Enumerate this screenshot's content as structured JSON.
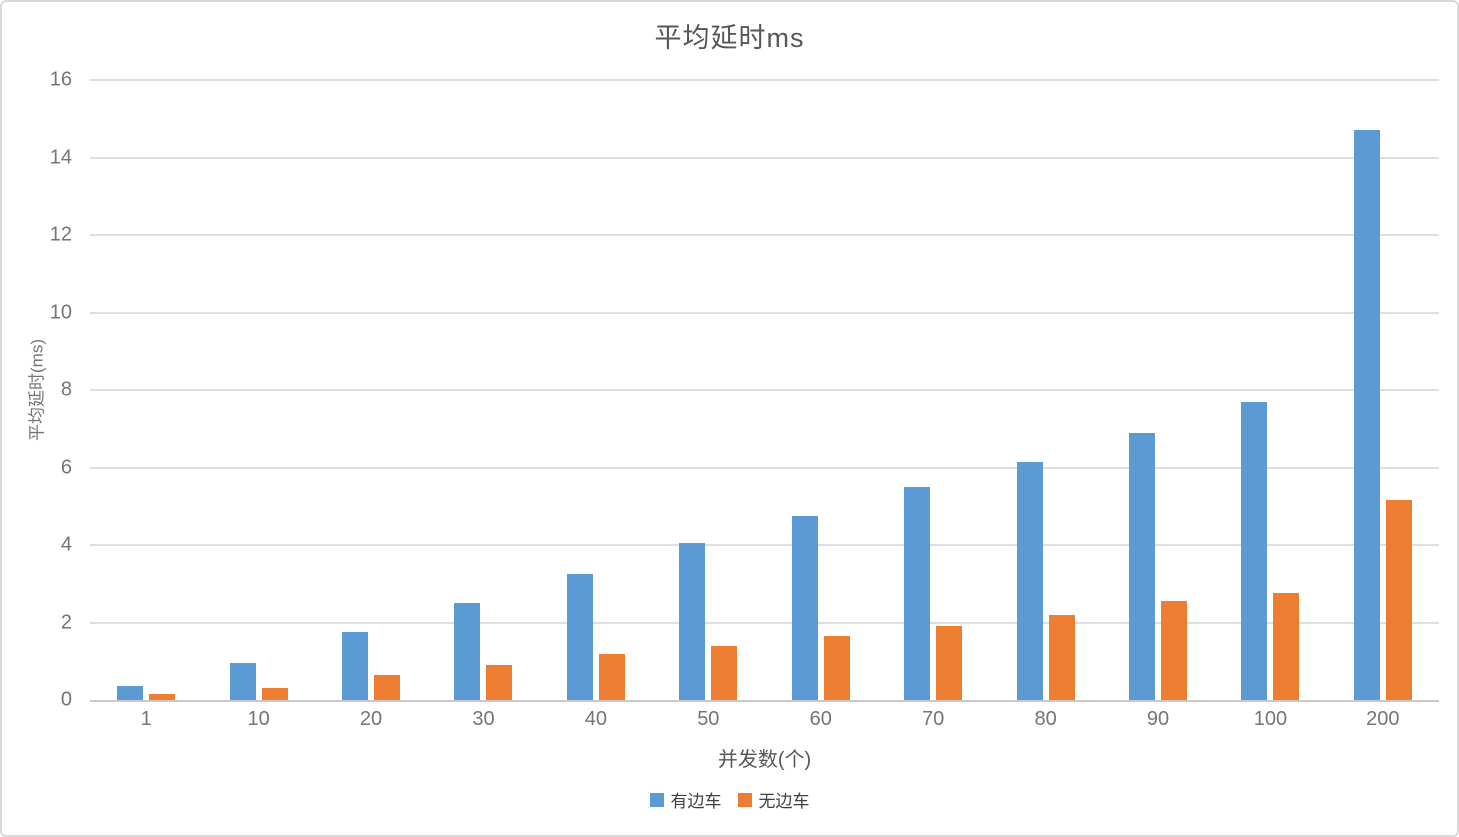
{
  "title": "平均延时ms",
  "chart_data": {
    "type": "bar",
    "title": "平均延时ms",
    "xlabel": "并发数(个)",
    "ylabel": "平均延时(ms)",
    "categories": [
      "1",
      "10",
      "20",
      "30",
      "40",
      "50",
      "60",
      "70",
      "80",
      "90",
      "100",
      "200"
    ],
    "series": [
      {
        "name": "有边车",
        "color": "#5B9AD5",
        "values": [
          0.35,
          0.95,
          1.75,
          2.5,
          3.25,
          4.05,
          4.75,
          5.5,
          6.15,
          6.9,
          7.7,
          14.7
        ]
      },
      {
        "name": "无边车",
        "color": "#ED7D31",
        "values": [
          0.15,
          0.3,
          0.65,
          0.9,
          1.2,
          1.4,
          1.65,
          1.9,
          2.2,
          2.55,
          2.75,
          5.15
        ]
      }
    ],
    "ylim": [
      0,
      16
    ],
    "yticks": [
      0,
      2,
      4,
      6,
      8,
      10,
      12,
      14,
      16
    ],
    "grid": true,
    "legend_position": "bottom"
  },
  "colors": {
    "series_blue": "#5B9AD5",
    "series_orange": "#ED7D31",
    "gridline": "#dfdfdf",
    "axis_line": "#c8c8c8",
    "tick_text": "#757575",
    "title_text": "#575757",
    "frame_border": "#d9d9d9"
  }
}
